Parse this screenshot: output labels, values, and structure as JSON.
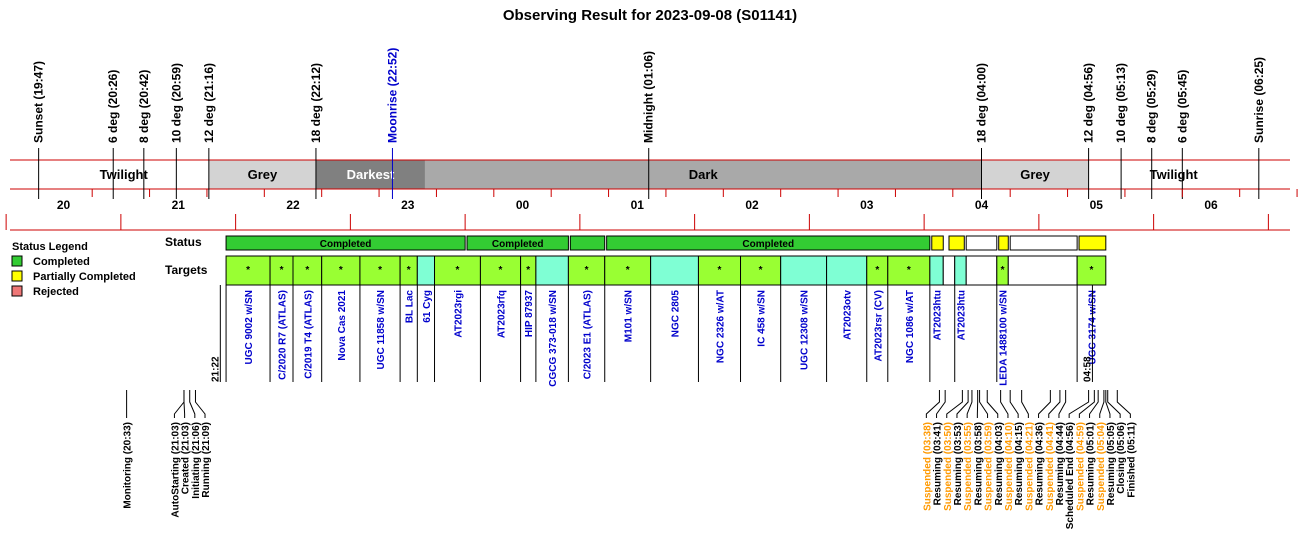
{
  "title": "Observing Result for 2023-09-08 (S01141)",
  "colors": {
    "red": "#cc0000",
    "completed": "#33cc33",
    "partial": "#ffff00",
    "rejected": "#ee7777",
    "target_done": "#99ff33",
    "target_other": "#7fffd4",
    "blue": "#0000cc",
    "orange": "#ff9900",
    "twilight": "#ffffff",
    "grey": "#d3d3d3",
    "darkest": "#808080",
    "dark": "#a9a9a9"
  },
  "sun_events": [
    {
      "label": "Sunset (19:47)",
      "time": "19:47"
    },
    {
      "label": "6 deg (20:26)",
      "time": "20:26"
    },
    {
      "label": "8 deg (20:42)",
      "time": "20:42"
    },
    {
      "label": "10 deg (20:59)",
      "time": "20:59"
    },
    {
      "label": "12 deg (21:16)",
      "time": "21:16"
    },
    {
      "label": "18 deg (22:12)",
      "time": "22:12"
    },
    {
      "label": "Moonrise (22:52)",
      "time": "22:52",
      "color": "blue"
    },
    {
      "label": "Midnight (01:06)",
      "time": "01:06"
    },
    {
      "label": "18 deg (04:00)",
      "time": "04:00"
    },
    {
      "label": "12 deg (04:56)",
      "time": "04:56"
    },
    {
      "label": "10 deg (05:13)",
      "time": "05:13"
    },
    {
      "label": "8 deg (05:29)",
      "time": "05:29"
    },
    {
      "label": "6 deg (05:45)",
      "time": "05:45"
    },
    {
      "label": "Sunrise (06:25)",
      "time": "06:25"
    }
  ],
  "bands": [
    {
      "label": "Twilight",
      "start": "19:47",
      "end": "21:16",
      "fill": "twilight",
      "text": "#000000"
    },
    {
      "label": "Grey",
      "start": "21:16",
      "end": "22:12",
      "fill": "grey",
      "text": "#000000"
    },
    {
      "label": "Darkest",
      "start": "22:12",
      "end": "23:09",
      "fill": "darkest",
      "text": "#ffffff"
    },
    {
      "label": "Dark",
      "start": "23:09",
      "end": "04:00",
      "fill": "dark",
      "text": "#000000"
    },
    {
      "label": "Grey",
      "start": "04:00",
      "end": "04:56",
      "fill": "grey",
      "text": "#000000"
    },
    {
      "label": "Twilight",
      "start": "04:56",
      "end": "06:25",
      "fill": "twilight",
      "text": "#000000"
    }
  ],
  "hours": [
    "20",
    "21",
    "22",
    "23",
    "00",
    "01",
    "02",
    "03",
    "04",
    "05",
    "06"
  ],
  "legend": {
    "title": "Status Legend",
    "items": [
      {
        "label": "Completed",
        "color": "completed"
      },
      {
        "label": "Partially Completed",
        "color": "partial"
      },
      {
        "label": "Rejected",
        "color": "rejected"
      }
    ]
  },
  "row_labels": {
    "status": "Status",
    "targets": "Targets"
  },
  "status_bars": [
    {
      "start": "21:25",
      "end": "23:30",
      "label": "Completed",
      "color": "completed"
    },
    {
      "start": "23:31",
      "end": "00:24",
      "label": "Completed",
      "color": "completed"
    },
    {
      "start": "00:25",
      "end": "00:43",
      "label": "",
      "color": "completed"
    },
    {
      "start": "00:44",
      "end": "03:33",
      "label": "Completed",
      "color": "completed"
    },
    {
      "start": "03:34",
      "end": "03:40",
      "label": "",
      "color": "partial"
    },
    {
      "start": "03:43",
      "end": "03:51",
      "label": "",
      "color": "partial"
    },
    {
      "start": "03:52",
      "end": "04:08",
      "label": "",
      "color": "white"
    },
    {
      "start": "04:09",
      "end": "04:14",
      "label": "",
      "color": "partial"
    },
    {
      "start": "04:15",
      "end": "04:50",
      "label": "",
      "color": "white"
    },
    {
      "start": "04:51",
      "end": "05:05",
      "label": "",
      "color": "partial"
    }
  ],
  "targets": [
    {
      "name": "UGC 9002 w/SN",
      "start": "21:25",
      "end": "21:48",
      "fill": "target_done",
      "star": "*"
    },
    {
      "name": "C/2020 R7 (ATLAS)",
      "start": "21:48",
      "end": "22:00",
      "fill": "target_done",
      "star": "*"
    },
    {
      "name": "C/2019 T4 (ATLAS)",
      "start": "22:00",
      "end": "22:15",
      "fill": "target_done",
      "star": "*"
    },
    {
      "name": "Nova Cas 2021",
      "start": "22:15",
      "end": "22:35",
      "fill": "target_done",
      "star": "*"
    },
    {
      "name": "UGC 11858 w/SN",
      "start": "22:35",
      "end": "22:56",
      "fill": "target_done",
      "star": "*"
    },
    {
      "name": "BL Lac",
      "start": "22:56",
      "end": "23:05",
      "fill": "target_done",
      "star": "*"
    },
    {
      "name": "61 Cyg",
      "start": "23:05",
      "end": "23:14",
      "fill": "target_other",
      "star": ""
    },
    {
      "name": "AT2023rgi",
      "start": "23:14",
      "end": "23:38",
      "fill": "target_done",
      "star": "*"
    },
    {
      "name": "AT2023rfq",
      "start": "23:38",
      "end": "23:59",
      "fill": "target_done",
      "star": "*"
    },
    {
      "name": "HIP 87937",
      "start": "23:59",
      "end": "00:07",
      "fill": "target_done",
      "star": "*"
    },
    {
      "name": "CGCG 373-018 w/SN",
      "start": "00:07",
      "end": "00:24",
      "fill": "target_other",
      "star": ""
    },
    {
      "name": "C/2023 E1 (ATLAS)",
      "start": "00:24",
      "end": "00:43",
      "fill": "target_done",
      "star": "*"
    },
    {
      "name": "M101 w/SN",
      "start": "00:43",
      "end": "01:07",
      "fill": "target_done",
      "star": "*"
    },
    {
      "name": "NGC 2805",
      "start": "01:07",
      "end": "01:32",
      "fill": "target_other",
      "star": ""
    },
    {
      "name": "NGC 2326 w/AT",
      "start": "01:32",
      "end": "01:54",
      "fill": "target_done",
      "star": "*"
    },
    {
      "name": "IC 458 w/SN",
      "start": "01:54",
      "end": "02:15",
      "fill": "target_done",
      "star": "*"
    },
    {
      "name": "UGC 12308 w/SN",
      "start": "02:15",
      "end": "02:39",
      "fill": "target_other",
      "star": ""
    },
    {
      "name": "AT2023otv",
      "start": "02:39",
      "end": "03:00",
      "fill": "target_other",
      "star": ""
    },
    {
      "name": "AT2023rsr (CV)",
      "start": "03:00",
      "end": "03:11",
      "fill": "target_done",
      "star": "*"
    },
    {
      "name": "NGC 1086 w/AT",
      "start": "03:11",
      "end": "03:33",
      "fill": "target_done",
      "star": "*"
    },
    {
      "name": "AT2023htu",
      "start": "03:33",
      "end": "03:40",
      "fill": "target_other",
      "star": ""
    },
    {
      "name": "",
      "start": "03:40",
      "end": "03:46",
      "fill": "white",
      "star": ""
    },
    {
      "name": "AT2023htu",
      "start": "03:46",
      "end": "03:52",
      "fill": "target_other",
      "star": ""
    },
    {
      "name": "",
      "start": "03:52",
      "end": "04:08",
      "fill": "white",
      "star": ""
    },
    {
      "name": "LEDA 1488100 w/SN",
      "start": "04:08",
      "end": "04:14",
      "fill": "target_done",
      "star": "*"
    },
    {
      "name": "",
      "start": "04:14",
      "end": "04:50",
      "fill": "white",
      "star": ""
    },
    {
      "name": "UGC 3174 w/SN",
      "start": "04:50",
      "end": "05:05",
      "fill": "target_done",
      "star": "*"
    }
  ],
  "run_markers": [
    {
      "label": "21:22",
      "time": "21:22"
    },
    {
      "label": "04:58",
      "time": "04:58"
    }
  ],
  "events_left": [
    {
      "label": "Monitoring (20:33)",
      "time": "20:33",
      "color": "black"
    },
    {
      "label": "AutoStarting (21:03)",
      "time": "21:03",
      "color": "black"
    },
    {
      "label": "Created (21:03)",
      "time": "21:03",
      "color": "black"
    },
    {
      "label": "Initiating (21:06)",
      "time": "21:06",
      "color": "black"
    },
    {
      "label": "Running (21:09)",
      "time": "21:09",
      "color": "black"
    }
  ],
  "events_right": [
    {
      "label": "Suspended (03:38)",
      "time": "03:38",
      "color": "orange"
    },
    {
      "label": "Resuming (03:41)",
      "time": "03:41",
      "color": "black"
    },
    {
      "label": "Suspended (03:50)",
      "time": "03:50",
      "color": "orange"
    },
    {
      "label": "Resuming (03:53)",
      "time": "03:53",
      "color": "black"
    },
    {
      "label": "Suspended (03:55)",
      "time": "03:55",
      "color": "orange"
    },
    {
      "label": "Resuming (03:58)",
      "time": "03:58",
      "color": "black"
    },
    {
      "label": "Suspended (03:59)",
      "time": "03:59",
      "color": "orange"
    },
    {
      "label": "Resuming (04:03)",
      "time": "04:03",
      "color": "black"
    },
    {
      "label": "Suspended (04:10)",
      "time": "04:10",
      "color": "orange"
    },
    {
      "label": "Resuming (04:15)",
      "time": "04:15",
      "color": "black"
    },
    {
      "label": "Suspended (04:21)",
      "time": "04:21",
      "color": "orange"
    },
    {
      "label": "Resuming (04:36)",
      "time": "04:36",
      "color": "black"
    },
    {
      "label": "Suspended (04:41)",
      "time": "04:41",
      "color": "orange"
    },
    {
      "label": "Resuming (04:44)",
      "time": "04:44",
      "color": "black"
    },
    {
      "label": "Scheduled End (04:56)",
      "time": "04:56",
      "color": "black"
    },
    {
      "label": "Suspended (04:59)",
      "time": "04:59",
      "color": "orange"
    },
    {
      "label": "Resuming (05:01)",
      "time": "05:01",
      "color": "black"
    },
    {
      "label": "Suspended (05:04)",
      "time": "05:04",
      "color": "orange"
    },
    {
      "label": "Resuming (05:05)",
      "time": "05:05",
      "color": "black"
    },
    {
      "label": "Closing (05:06)",
      "time": "05:06",
      "color": "black"
    },
    {
      "label": "Finished (05:11)",
      "time": "05:11",
      "color": "black"
    }
  ]
}
